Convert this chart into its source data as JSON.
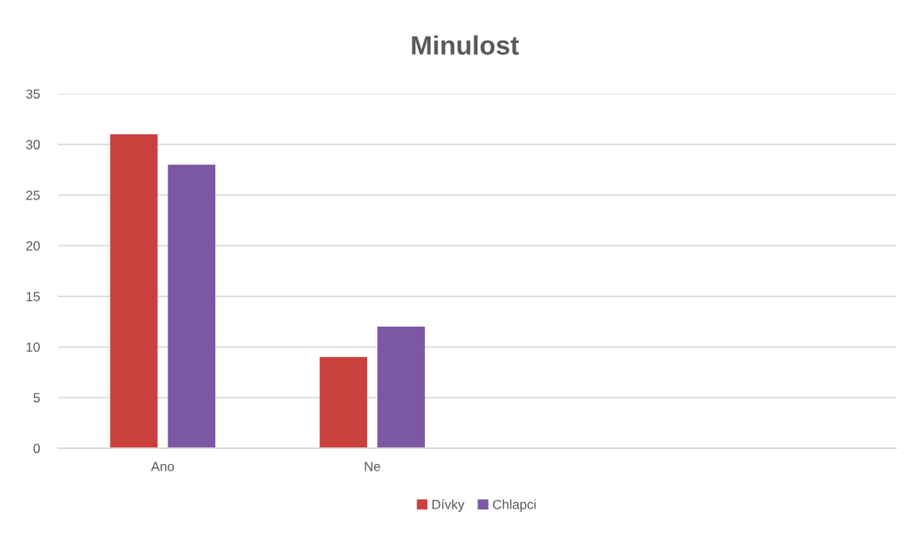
{
  "chart_data": {
    "type": "bar",
    "title": "Minulost",
    "categories": [
      "Ano",
      "Ne",
      null,
      null
    ],
    "series": [
      {
        "name": "Dívky",
        "color": "#c9403d",
        "values": [
          31,
          9,
          null,
          null
        ]
      },
      {
        "name": "Chlapci",
        "color": "#7b58a3",
        "values": [
          28,
          12,
          null,
          null
        ]
      }
    ],
    "ylim": [
      0,
      35
    ],
    "yticks": [
      0,
      5,
      10,
      15,
      20,
      25,
      30,
      35
    ],
    "grid": "y",
    "legend": "bottom"
  }
}
